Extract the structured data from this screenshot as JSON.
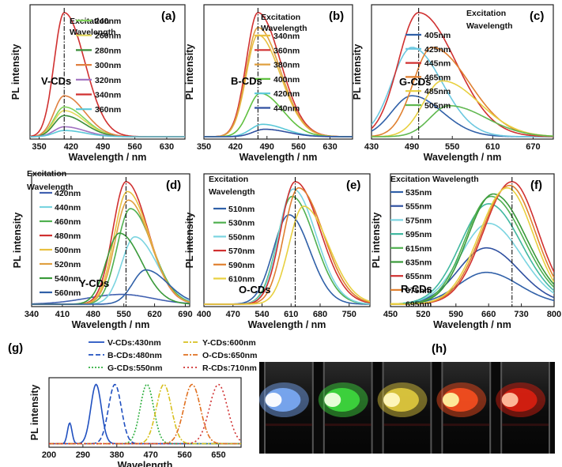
{
  "chart_data": [
    {
      "id": "a",
      "type": "line",
      "panel_label": "(a)",
      "xlabel": "Wavelength / nm",
      "ylabel": "PL intensity",
      "xlim": [
        330,
        670
      ],
      "xticks": [
        350,
        420,
        490,
        560,
        630
      ],
      "legend_title": [
        "Excitation",
        "Wavelength"
      ],
      "annotation": "V-CDs",
      "peak_line_x": 405,
      "series": [
        {
          "name": "240nm",
          "color": "#7fd35a",
          "peak_x": 405,
          "height": 0.24,
          "width_left": 22,
          "width_right": 45
        },
        {
          "name": "260nm",
          "color": "#e3d85a",
          "peak_x": 405,
          "height": 0.21,
          "width_left": 22,
          "width_right": 45
        },
        {
          "name": "280nm",
          "color": "#3a8e3a",
          "peak_x": 405,
          "height": 0.17,
          "width_left": 22,
          "width_right": 45
        },
        {
          "name": "300nm",
          "color": "#e08040",
          "peak_x": 405,
          "height": 0.33,
          "width_left": 22,
          "width_right": 45
        },
        {
          "name": "320nm",
          "color": "#a070c0",
          "peak_x": 405,
          "height": 0.08,
          "width_left": 22,
          "width_right": 45
        },
        {
          "name": "340nm",
          "color": "#d03030",
          "peak_x": 405,
          "height": 1.0,
          "width_left": 22,
          "width_right": 45
        },
        {
          "name": "360nm",
          "color": "#5ac8d8",
          "peak_x": 405,
          "height": 0.05,
          "width_left": 22,
          "width_right": 45
        }
      ]
    },
    {
      "id": "b",
      "type": "line",
      "panel_label": "(b)",
      "xlabel": "Wavelength / nm",
      "ylabel": "PL intensity",
      "xlim": [
        350,
        680
      ],
      "xticks": [
        350,
        420,
        490,
        560,
        630
      ],
      "legend_title": [
        "Excitation",
        "Wavelength"
      ],
      "annotation": "B-CDs",
      "peak_line_x": 470,
      "series": [
        {
          "name": "340nm",
          "color": "#e8c040",
          "peak_x": 470,
          "height": 0.82,
          "width_left": 26,
          "width_right": 50
        },
        {
          "name": "360nm",
          "color": "#d03030",
          "peak_x": 470,
          "height": 1.0,
          "width_left": 26,
          "width_right": 50
        },
        {
          "name": "380nm",
          "color": "#e0a040",
          "peak_x": 470,
          "height": 0.88,
          "width_left": 26,
          "width_right": 50
        },
        {
          "name": "400nm",
          "color": "#60c040",
          "peak_x": 475,
          "height": 0.35,
          "width_left": 26,
          "width_right": 50
        },
        {
          "name": "420nm",
          "color": "#5ac8d8",
          "peak_x": 480,
          "height": 0.1,
          "width_left": 26,
          "width_right": 50
        },
        {
          "name": "440nm",
          "color": "#3050a0",
          "peak_x": 485,
          "height": 0.06,
          "width_left": 26,
          "width_right": 50
        }
      ]
    },
    {
      "id": "c",
      "type": "line",
      "panel_label": "(c)",
      "xlabel": "Wavelength / nm",
      "ylabel": "PL intensity",
      "xlim": [
        430,
        700
      ],
      "xticks": [
        430,
        490,
        550,
        610,
        670
      ],
      "legend_title": [
        "Excitation",
        "Wavelength"
      ],
      "annotation": "G-CDs",
      "peak_line_x": 500,
      "series": [
        {
          "name": "405nm",
          "color": "#3060a8",
          "peak_x": 490,
          "height": 0.33,
          "width_left": 30,
          "width_right": 45
        },
        {
          "name": "425nm",
          "color": "#6cc8e0",
          "peak_x": 490,
          "height": 0.72,
          "width_left": 30,
          "width_right": 45
        },
        {
          "name": "445nm",
          "color": "#d03030",
          "peak_x": 500,
          "height": 1.0,
          "width_left": 30,
          "width_right": 55
        },
        {
          "name": "465nm",
          "color": "#e08030",
          "peak_x": 520,
          "height": 0.72,
          "width_left": 28,
          "width_right": 55
        },
        {
          "name": "485nm",
          "color": "#e8d040",
          "peak_x": 535,
          "height": 0.45,
          "width_left": 28,
          "width_right": 55
        },
        {
          "name": "505nm",
          "color": "#60b850",
          "peak_x": 545,
          "height": 0.25,
          "width_left": 28,
          "width_right": 55
        }
      ]
    },
    {
      "id": "d",
      "type": "line",
      "panel_label": "(d)",
      "xlabel": "Wavelength / nm",
      "ylabel": "PL intensity",
      "xlim": [
        340,
        700
      ],
      "xticks": [
        340,
        410,
        480,
        550,
        620,
        690
      ],
      "legend_title": [
        "Excitation",
        "Wavelength"
      ],
      "annotation": "Y-CDs",
      "peak_line_x": 555,
      "series": [
        {
          "name": "420nm",
          "color": "#4060b0",
          "peak_x": 545,
          "height": 0.08,
          "width_left": 80,
          "width_right": 70
        },
        {
          "name": "440nm",
          "color": "#7ad4e0",
          "peak_x": 575,
          "height": 0.55,
          "width_left": 30,
          "width_right": 50
        },
        {
          "name": "460nm",
          "color": "#50b050",
          "peak_x": 565,
          "height": 0.78,
          "width_left": 30,
          "width_right": 50
        },
        {
          "name": "480nm",
          "color": "#d03030",
          "peak_x": 555,
          "height": 1.0,
          "width_left": 30,
          "width_right": 50
        },
        {
          "name": "500nm",
          "color": "#e8c040",
          "peak_x": 558,
          "height": 0.92,
          "width_left": 30,
          "width_right": 50
        },
        {
          "name": "520nm",
          "color": "#e0a040",
          "peak_x": 560,
          "height": 0.85,
          "width_left": 30,
          "width_right": 50
        },
        {
          "name": "540nm",
          "color": "#3a9a3a",
          "peak_x": 540,
          "height": 0.58,
          "width_left": 30,
          "width_right": 50
        },
        {
          "name": "560nm",
          "color": "#3060a8",
          "peak_x": 600,
          "height": 0.28,
          "width_left": 30,
          "width_right": 50
        }
      ]
    },
    {
      "id": "e",
      "type": "line",
      "panel_label": "(e)",
      "xlabel": "Wavelength / nm",
      "ylabel": "PL intensity",
      "xlim": [
        400,
        800
      ],
      "xticks": [
        400,
        470,
        540,
        610,
        680,
        750
      ],
      "legend_title": [
        "Excitation",
        "Wavelength"
      ],
      "annotation": "O-CDs",
      "peak_line_x": 620,
      "series": [
        {
          "name": "510nm",
          "color": "#3060a8",
          "peak_x": 605,
          "height": 0.73,
          "width_left": 38,
          "width_right": 50
        },
        {
          "name": "530nm",
          "color": "#50b050",
          "peak_x": 612,
          "height": 0.88,
          "width_left": 35,
          "width_right": 55
        },
        {
          "name": "550nm",
          "color": "#7ad4e0",
          "peak_x": 615,
          "height": 0.94,
          "width_left": 35,
          "width_right": 55
        },
        {
          "name": "570nm",
          "color": "#d03030",
          "peak_x": 620,
          "height": 1.0,
          "width_left": 35,
          "width_right": 60
        },
        {
          "name": "590nm",
          "color": "#e08030",
          "peak_x": 628,
          "height": 0.95,
          "width_left": 35,
          "width_right": 60
        },
        {
          "name": "610nm",
          "color": "#e8d040",
          "peak_x": 640,
          "height": 0.8,
          "width_left": 35,
          "width_right": 60
        }
      ]
    },
    {
      "id": "f",
      "type": "line",
      "panel_label": "(f)",
      "xlabel": "Wavelength / nm",
      "ylabel": "PL intensity",
      "xlim": [
        450,
        800
      ],
      "xticks": [
        450,
        520,
        590,
        660,
        730,
        800
      ],
      "legend_title": [
        "Excitation Wavelength"
      ],
      "annotation": "R-CDs",
      "peak_line_x": 710,
      "series": [
        {
          "name": "535nm",
          "color": "#3060a8",
          "peak_x": 655,
          "height": 0.26,
          "width_left": 60,
          "width_right": 70
        },
        {
          "name": "555nm",
          "color": "#2f50a0",
          "peak_x": 655,
          "height": 0.46,
          "width_left": 60,
          "width_right": 70
        },
        {
          "name": "575nm",
          "color": "#7ad4e0",
          "peak_x": 660,
          "height": 0.66,
          "width_left": 60,
          "width_right": 70
        },
        {
          "name": "595nm",
          "color": "#40b8a0",
          "peak_x": 660,
          "height": 0.82,
          "width_left": 60,
          "width_right": 70
        },
        {
          "name": "615nm",
          "color": "#50b050",
          "peak_x": 665,
          "height": 0.88,
          "width_left": 55,
          "width_right": 70
        },
        {
          "name": "635nm",
          "color": "#3a9a3a",
          "peak_x": 670,
          "height": 0.9,
          "width_left": 55,
          "width_right": 70
        },
        {
          "name": "655nm",
          "color": "#d03030",
          "peak_x": 710,
          "height": 1.0,
          "width_left": 60,
          "width_right": 55
        },
        {
          "name": "675nm",
          "color": "#e08030",
          "peak_x": 705,
          "height": 0.97,
          "width_left": 60,
          "width_right": 55
        },
        {
          "name": "695nm",
          "color": "#e8d040",
          "peak_x": 700,
          "height": 0.95,
          "width_left": 60,
          "width_right": 55
        }
      ]
    },
    {
      "id": "g",
      "type": "line",
      "panel_label": "(g)",
      "xlabel": "Wavelength",
      "ylabel": "PL intensity",
      "xlim": [
        200,
        710
      ],
      "xticks": [
        200,
        290,
        380,
        470,
        560,
        650
      ],
      "series": [
        {
          "name": "V-CDs:430nm",
          "color": "#2050c0",
          "dash": "solid",
          "peaks": [
            {
              "x": 255,
              "h": 0.35,
              "w": 6
            },
            {
              "x": 325,
              "h": 1.0,
              "w": 14
            }
          ]
        },
        {
          "name": "B-CDs:480nm",
          "color": "#2050c0",
          "dash": "6,3",
          "peaks": [
            {
              "x": 375,
              "h": 1.0,
              "w": 17
            }
          ]
        },
        {
          "name": "G-CDs:550nm",
          "color": "#30b040",
          "dash": "2,2",
          "peaks": [
            {
              "x": 460,
              "h": 1.0,
              "w": 18
            }
          ]
        },
        {
          "name": "Y-CDs:600nm",
          "color": "#d8c020",
          "dash": "6,2,2,2",
          "peaks": [
            {
              "x": 505,
              "h": 1.0,
              "w": 20
            }
          ]
        },
        {
          "name": "O-CDs:650nm",
          "color": "#e07020",
          "dash": "6,2,2,2",
          "peaks": [
            {
              "x": 580,
              "h": 1.0,
              "w": 22
            }
          ]
        },
        {
          "name": "R-CDs:710nm",
          "color": "#d03030",
          "dash": "2,3",
          "peaks": [
            {
              "x": 650,
              "h": 1.0,
              "w": 24
            }
          ]
        }
      ]
    }
  ],
  "photo_panel": {
    "label": "(h)",
    "vials": [
      {
        "name": "blue",
        "glow": "#7fb0ff",
        "core": "#ffffff"
      },
      {
        "name": "green",
        "glow": "#40e040",
        "core": "#f0ffe0"
      },
      {
        "name": "yellow",
        "glow": "#e8d040",
        "core": "#fff8c0"
      },
      {
        "name": "orange",
        "glow": "#ff5020",
        "core": "#fff0a0"
      },
      {
        "name": "red",
        "glow": "#e02010",
        "core": "#ffc0a0"
      }
    ]
  }
}
